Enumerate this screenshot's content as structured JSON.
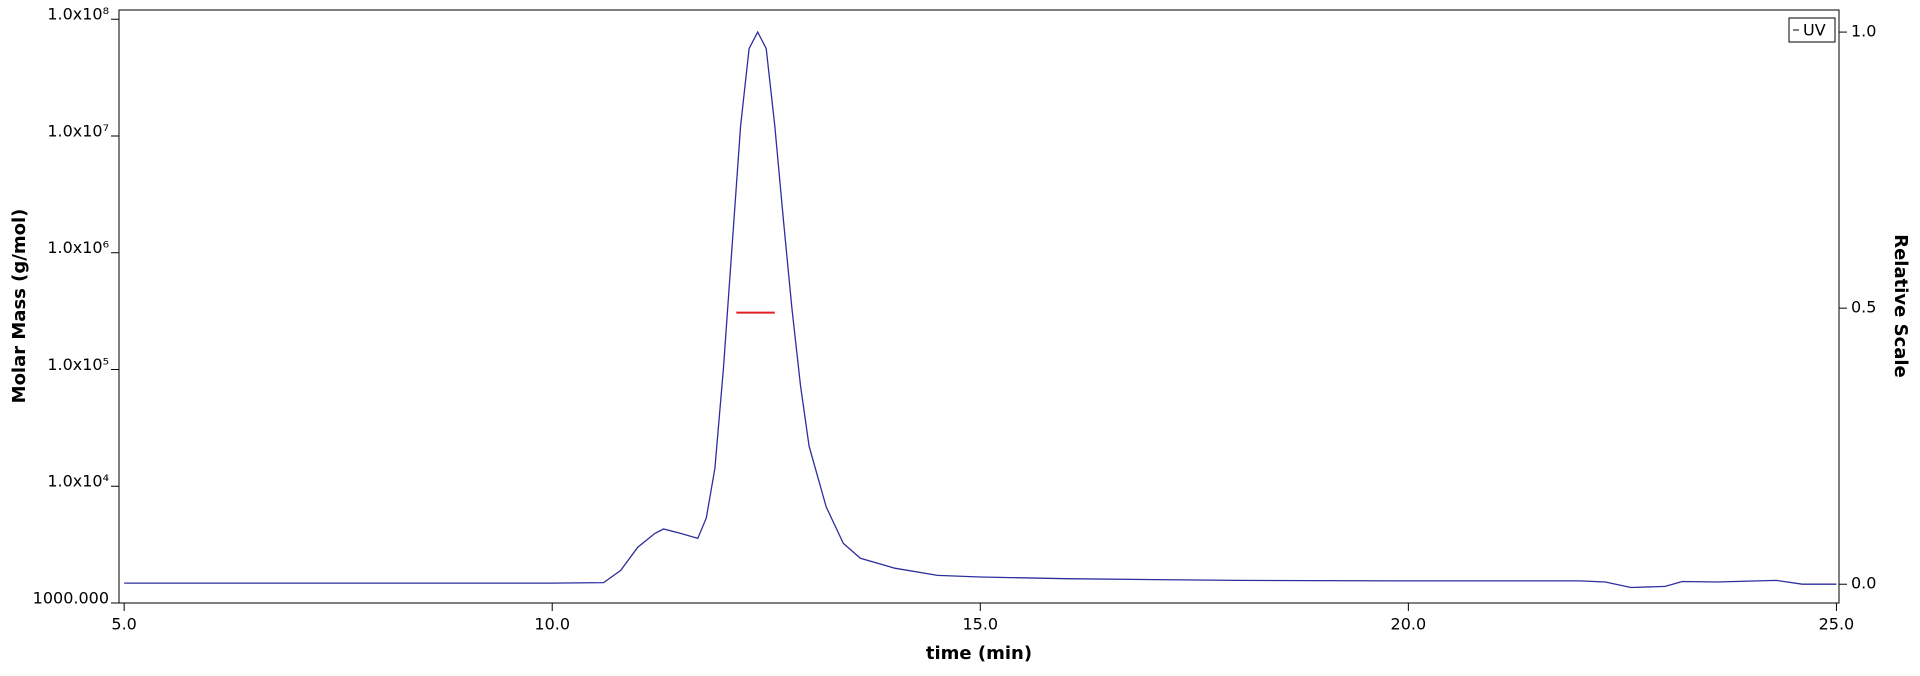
{
  "chart_data": {
    "type": "line",
    "xlabel": "time (min)",
    "ylabel": "Molar Mass (g/mol)",
    "y2label": "Relative Scale",
    "xlim": [
      4.94,
      25.03
    ],
    "xticks": [
      {
        "value": 5,
        "label": "5.0"
      },
      {
        "value": 10,
        "label": "10.0"
      },
      {
        "value": 15,
        "label": "15.0"
      },
      {
        "value": 20,
        "label": "20.0"
      },
      {
        "value": 25,
        "label": "25.0"
      }
    ],
    "ylim": [
      1000,
      120000000
    ],
    "ylog": true,
    "yticks": [
      {
        "value": 1000,
        "label": "1000.000"
      },
      {
        "value": 10000,
        "label": "1.0x10⁴"
      },
      {
        "value": 100000,
        "label": "1.0x10⁵"
      },
      {
        "value": 1000000,
        "label": "1.0x10⁶"
      },
      {
        "value": 10000000,
        "label": "1.0x10⁷"
      },
      {
        "value": 100000000,
        "label": "1.0x10⁸"
      }
    ],
    "y2lim": [
      -0.034,
      1.04
    ],
    "y2ticks": [
      {
        "value": 0,
        "label": "0.0"
      },
      {
        "value": 0.5,
        "label": "0.5"
      },
      {
        "value": 1,
        "label": "1.0"
      }
    ],
    "legend": "upper right",
    "series": [
      {
        "name": "UV",
        "color": "#2e2e9e",
        "axis": "y2",
        "x": [
          5.0,
          10.0,
          10.6,
          10.8,
          11.0,
          11.2,
          11.3,
          11.5,
          11.7,
          11.8,
          11.9,
          12.0,
          12.1,
          12.2,
          12.3,
          12.4,
          12.5,
          12.6,
          12.7,
          12.8,
          12.9,
          13.0,
          13.2,
          13.4,
          13.6,
          14.0,
          14.5,
          15.0,
          16.0,
          18.0,
          20.0,
          22.0,
          22.3,
          22.6,
          23.0,
          23.2,
          23.6,
          24.3,
          24.6,
          25.0
        ],
        "values": [
          0.002,
          0.002,
          0.003,
          0.025,
          0.067,
          0.092,
          0.1,
          0.092,
          0.083,
          0.12,
          0.21,
          0.39,
          0.61,
          0.83,
          0.97,
          1.0,
          0.97,
          0.83,
          0.66,
          0.5,
          0.36,
          0.25,
          0.14,
          0.074,
          0.047,
          0.029,
          0.016,
          0.013,
          0.01,
          0.007,
          0.006,
          0.006,
          0.004,
          -0.006,
          -0.004,
          0.005,
          0.004,
          0.007,
          0.0,
          0.0
        ]
      },
      {
        "color": "#e02020",
        "axis": "y",
        "x": [
          12.15,
          12.25,
          12.35,
          12.45,
          12.55,
          12.6
        ],
        "values": [
          307000,
          307000,
          307000,
          307000,
          307000,
          307000
        ]
      }
    ]
  }
}
